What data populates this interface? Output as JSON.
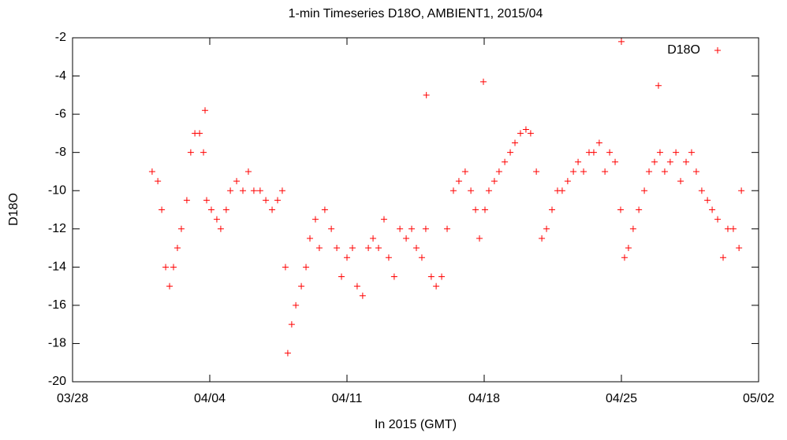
{
  "chart_data": {
    "type": "scatter",
    "title": "1-min Timeseries D18O, AMBIENT1, 2015/04",
    "x_label": "In 2015 (GMT)",
    "y_label": "D18O",
    "legend": "top-right",
    "xlim": [
      87,
      122
    ],
    "xticks": [
      {
        "value": 87,
        "label": "03/28"
      },
      {
        "value": 94,
        "label": "04/04"
      },
      {
        "value": 101,
        "label": "04/11"
      },
      {
        "value": 108,
        "label": "04/18"
      },
      {
        "value": 115,
        "label": "04/25"
      },
      {
        "value": 122,
        "label": "05/02"
      }
    ],
    "ylim": [
      -20,
      -2
    ],
    "yticks": [
      -20,
      -18,
      -16,
      -14,
      -12,
      -10,
      -8,
      -6,
      -4,
      -2
    ],
    "series": [
      {
        "name": "D18O",
        "color": "#ff0000",
        "x": [
          91.06,
          91.35,
          91.55,
          91.75,
          91.95,
          92.15,
          92.35,
          92.55,
          92.83,
          93.03,
          93.24,
          93.48,
          93.68,
          93.76,
          93.84,
          94.08,
          94.36,
          94.56,
          94.84,
          95.05,
          95.37,
          95.69,
          95.97,
          96.25,
          96.57,
          96.86,
          97.18,
          97.46,
          97.7,
          97.86,
          97.98,
          98.18,
          98.39,
          98.67,
          98.91,
          99.11,
          99.39,
          99.59,
          99.87,
          100.2,
          100.48,
          100.72,
          101.0,
          101.28,
          101.52,
          101.8,
          102.09,
          102.33,
          102.61,
          102.89,
          103.13,
          103.41,
          103.7,
          104.02,
          104.3,
          104.54,
          104.82,
          105.02,
          105.05,
          105.3,
          105.55,
          105.83,
          106.11,
          106.43,
          106.71,
          107.03,
          107.32,
          107.56,
          107.76,
          107.96,
          108.04,
          108.24,
          108.52,
          108.76,
          109.05,
          109.33,
          109.57,
          109.85,
          110.13,
          110.37,
          110.66,
          110.94,
          111.18,
          111.46,
          111.74,
          111.98,
          112.26,
          112.55,
          112.79,
          113.07,
          113.35,
          113.59,
          113.87,
          114.16,
          114.4,
          114.68,
          114.96,
          115.0,
          115.16,
          115.36,
          115.6,
          115.89,
          116.17,
          116.41,
          116.69,
          116.89,
          116.97,
          117.21,
          117.49,
          117.78,
          118.02,
          118.3,
          118.58,
          118.82,
          119.1,
          119.39,
          119.63,
          119.91,
          120.19,
          120.43,
          120.71,
          121.0,
          121.12
        ],
        "values": [
          -9,
          -9.5,
          -11,
          -14,
          -15,
          -14,
          -13,
          -12,
          -10.5,
          -8,
          -7,
          -7,
          -8,
          -5.8,
          -10.5,
          -11,
          -11.5,
          -12,
          -11,
          -10,
          -9.5,
          -10,
          -9,
          -10,
          -10,
          -10.5,
          -11,
          -10.5,
          -10,
          -14,
          -18.5,
          -17,
          -16,
          -15,
          -14,
          -12.5,
          -11.5,
          -13,
          -11,
          -12,
          -13,
          -14.5,
          -13.5,
          -13,
          -15,
          -15.5,
          -13,
          -12.5,
          -13,
          -11.5,
          -13.5,
          -14.5,
          -12,
          -12.5,
          -12,
          -13,
          -13.5,
          -12,
          -5,
          -14.5,
          -15,
          -14.5,
          -12,
          -10,
          -9.5,
          -9,
          -10,
          -11,
          -12.5,
          -4.3,
          -11,
          -10,
          -9.5,
          -9,
          -8.5,
          -8,
          -7.5,
          -7,
          -6.8,
          -7,
          -9,
          -12.5,
          -12,
          -11,
          -10,
          -10,
          -9.5,
          -9,
          -8.5,
          -9,
          -8,
          -8,
          -7.5,
          -9,
          -8,
          -8.5,
          -11,
          -2.2,
          -13.5,
          -13,
          -12,
          -11,
          -10,
          -9,
          -8.5,
          -4.5,
          -8,
          -9,
          -8.5,
          -8,
          -9.5,
          -8.5,
          -8,
          -9,
          -10,
          -10.5,
          -11,
          -11.5,
          -13.5,
          -12,
          -12,
          -13,
          -10
        ]
      }
    ]
  }
}
